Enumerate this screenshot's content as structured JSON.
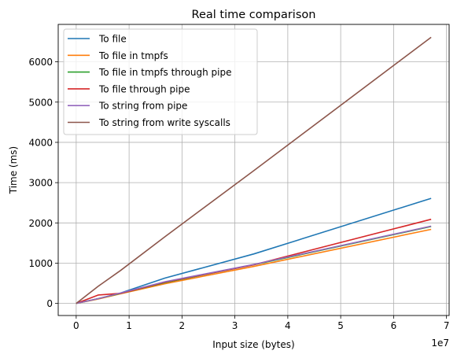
{
  "chart_data": {
    "type": "line",
    "title": "Real time comparison",
    "xlabel": "Input size (bytes)",
    "ylabel": "Time (ms)",
    "x_offset_label": "1e7",
    "xlim": [
      -0.34,
      7.05
    ],
    "ylim": [
      -300,
      6930
    ],
    "xticks": [
      0,
      1,
      2,
      3,
      4,
      5,
      6,
      7
    ],
    "xtick_labels": [
      "0",
      "1",
      "2",
      "3",
      "4",
      "5",
      "6",
      "7"
    ],
    "yticks": [
      0,
      1000,
      2000,
      3000,
      4000,
      5000,
      6000
    ],
    "ytick_labels": [
      "0",
      "1000",
      "2000",
      "3000",
      "4000",
      "5000",
      "6000"
    ],
    "grid": true,
    "legend_position": "top-left",
    "series": [
      {
        "name": "To file",
        "color": "#1f77b4",
        "x": [
          0,
          0.42,
          0.84,
          1.68,
          3.36,
          6.71
        ],
        "y": [
          0,
          120,
          260,
          630,
          1230,
          2610
        ]
      },
      {
        "name": "To file in tmpfs",
        "color": "#ff7f0e",
        "x": [
          0,
          0.42,
          0.84,
          1.68,
          3.36,
          6.71
        ],
        "y": [
          0,
          110,
          240,
          490,
          920,
          1840
        ]
      },
      {
        "name": "To file in tmpfs through pipe",
        "color": "#2ca02c",
        "x": [
          0,
          0.42,
          0.84,
          1.68,
          3.36,
          6.71
        ],
        "y": [
          0,
          120,
          250,
          520,
          960,
          1910
        ]
      },
      {
        "name": "To file through pipe",
        "color": "#d62728",
        "x": [
          0,
          0.42,
          0.84,
          1.68,
          3.36,
          6.71
        ],
        "y": [
          0,
          210,
          250,
          530,
          960,
          2090
        ]
      },
      {
        "name": "To string from pipe",
        "color": "#9467bd",
        "x": [
          0,
          0.42,
          0.84,
          1.68,
          3.36,
          6.71
        ],
        "y": [
          0,
          120,
          260,
          540,
          970,
          1920
        ]
      },
      {
        "name": "To string from write syscalls",
        "color": "#8c564b",
        "x": [
          0,
          0.42,
          0.84,
          1.68,
          3.36,
          6.71
        ],
        "y": [
          0,
          430,
          820,
          1660,
          3300,
          6610
        ]
      }
    ]
  }
}
